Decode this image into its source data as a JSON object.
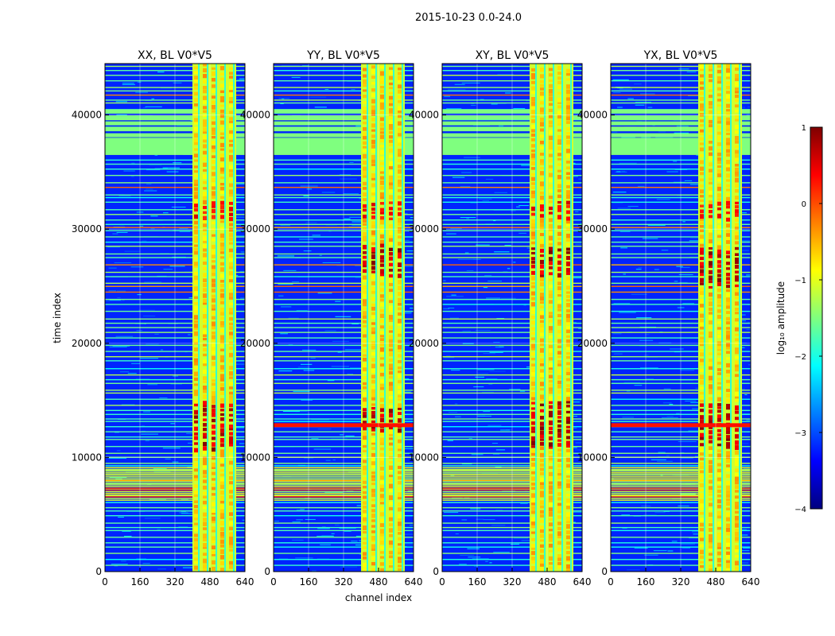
{
  "chart_data": {
    "type": "heatmap",
    "suptitle": "2015-10-23 0.0-24.0",
    "xlabel": "channel index",
    "ylabel": "time index",
    "xlim": [
      0,
      640
    ],
    "ylim": [
      0,
      44500
    ],
    "xticks": [
      0,
      160,
      320,
      480,
      640
    ],
    "yticks": [
      0,
      10000,
      20000,
      30000,
      40000
    ],
    "panels": [
      {
        "title": "XX, BL V0*V5",
        "strong_bands": [
          [
            10800,
            15000
          ]
        ],
        "wide_strip": false
      },
      {
        "title": "YY, BL V0*V5",
        "strong_bands": [
          [
            12500,
            14500
          ],
          [
            26000,
            28800
          ]
        ],
        "wide_strip": true
      },
      {
        "title": "XY, BL V0*V5",
        "strong_bands": [
          [
            11000,
            15000
          ],
          [
            26000,
            28500
          ]
        ],
        "wide_strip": false
      },
      {
        "title": "YX, BL V0*V5",
        "strong_bands": [
          [
            11000,
            15000
          ],
          [
            25000,
            28500
          ]
        ],
        "wide_strip": true
      }
    ],
    "rfi_channel_band": [
      400,
      600
    ],
    "saturated_time_band": [
      36500,
      38000
    ],
    "colorbar": {
      "label": "log₁₀ amplitude",
      "range": [
        -4,
        1
      ],
      "ticks": [
        "1",
        "0",
        "−1",
        "−2",
        "−3",
        "−4"
      ],
      "colormap": [
        "#00007f",
        "#0000ff",
        "#007fff",
        "#00ffff",
        "#7fff7f",
        "#ffff00",
        "#ff7f00",
        "#ff0000",
        "#7f0000"
      ]
    }
  }
}
